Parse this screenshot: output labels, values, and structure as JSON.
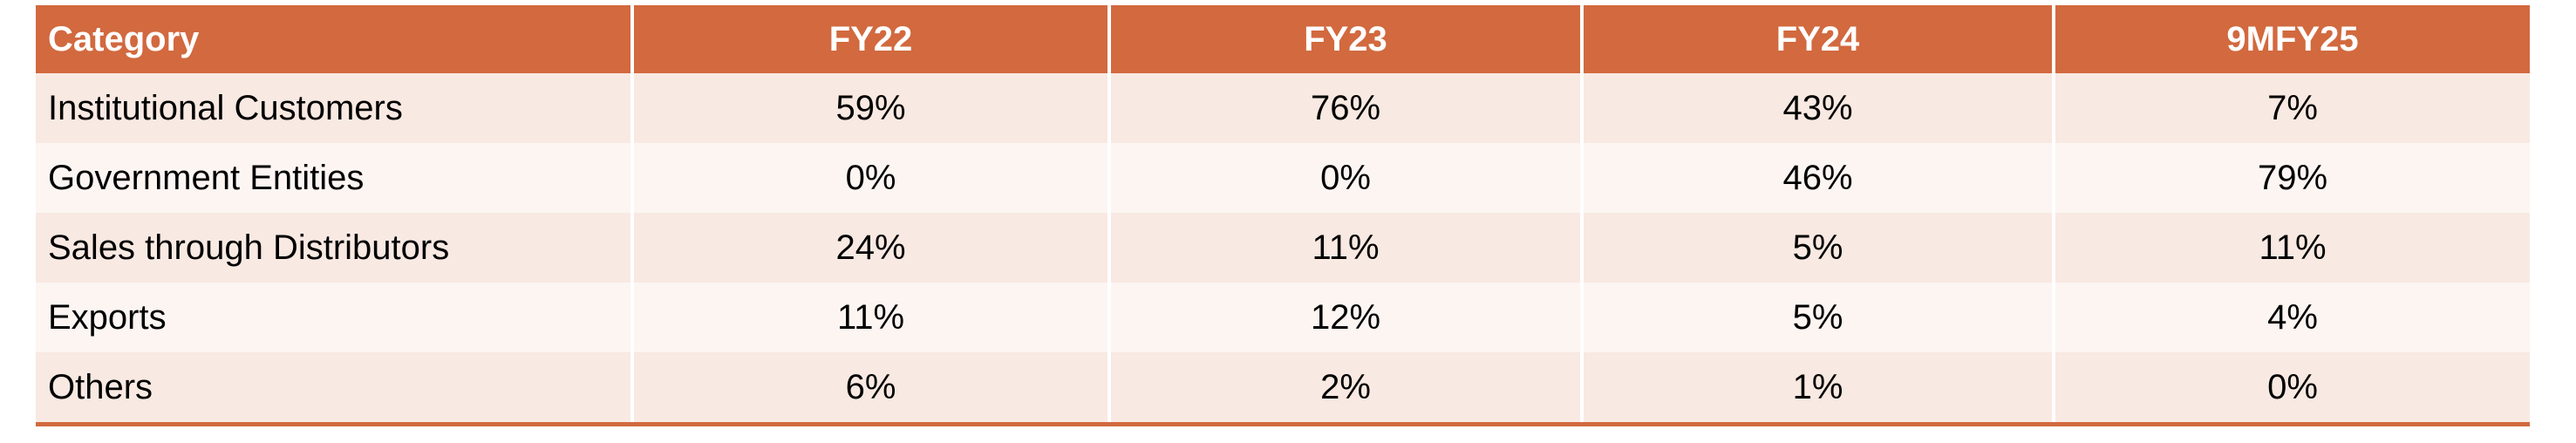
{
  "table": {
    "header": [
      "Category",
      "FY22",
      "FY23",
      "FY24",
      "9MFY25"
    ],
    "rows": [
      [
        "Institutional Customers",
        "59%",
        "76%",
        "43%",
        "7%"
      ],
      [
        "Government Entities",
        "0%",
        "0%",
        "46%",
        "79%"
      ],
      [
        "Sales through Distributors",
        "24%",
        "11%",
        "5%",
        "11%"
      ],
      [
        "Exports",
        "11%",
        "12%",
        "5%",
        "4%"
      ],
      [
        "Others",
        "6%",
        "2%",
        "1%",
        "0%"
      ]
    ]
  }
}
